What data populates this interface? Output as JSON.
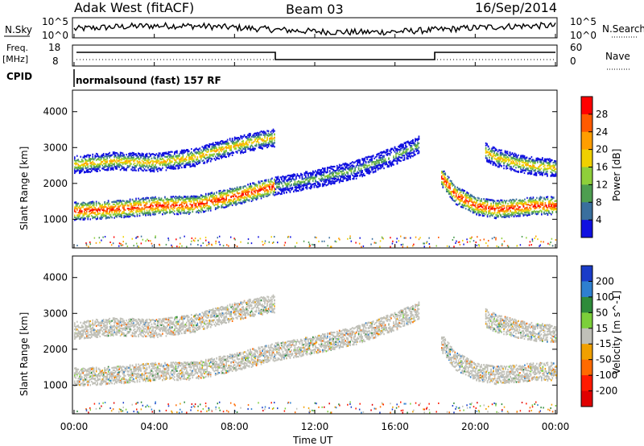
{
  "header": {
    "station": "Adak West (fitACF)",
    "beam": "Beam 03",
    "date": "16/Sep/2014"
  },
  "top_panels": {
    "nsky_label": "N.Sky",
    "nsky_ticks": [
      "10^5",
      "10^0"
    ],
    "nsearch_label": "N.Search",
    "nsearch_ticks": [
      "10^5",
      "10^0"
    ],
    "freq_label": "Freq.",
    "freq_unit": "[MHz]",
    "freq_ticks": [
      "18",
      "8"
    ],
    "nave_label": "Nave",
    "nave_ticks": [
      "60",
      "0"
    ],
    "cpid_label": "CPID",
    "cpid_text": "normalsound (fast) 157 RF"
  },
  "x_axis": {
    "label": "Time UT",
    "ticks": [
      "00:00",
      "04:00",
      "08:00",
      "12:00",
      "16:00",
      "20:00",
      "00:00"
    ]
  },
  "chart_data": [
    {
      "type": "heatmap",
      "quantity": "Power",
      "ylabel": "Slant Range [km]",
      "xlabel": "Time UT",
      "xlim": [
        0,
        24
      ],
      "ylim": [
        200,
        4600
      ],
      "y_ticks": [
        1000,
        2000,
        3000,
        4000
      ],
      "colorbar": {
        "label": "Power [dB]",
        "ticks": [
          "28",
          "24",
          "20",
          "16",
          "12",
          "8",
          "4"
        ],
        "colors": [
          "#ff0000",
          "#ff5a00",
          "#ff9e00",
          "#f0d000",
          "#8fcf3a",
          "#4e9e50",
          "#3a6f9e",
          "#1010e0"
        ]
      },
      "echo_bands": [
        {
          "band": "near",
          "x": [
            0,
            2,
            4,
            6,
            7.5,
            9,
            10,
            12,
            14,
            16,
            17.2
          ],
          "y": [
            1250,
            1300,
            1400,
            1420,
            1600,
            1800,
            1950,
            2150,
            2400,
            2800,
            3100
          ]
        },
        {
          "band": "far",
          "x": [
            0,
            2,
            4,
            6,
            7.5,
            9,
            10
          ],
          "y": [
            2550,
            2650,
            2600,
            2750,
            3000,
            3200,
            3300
          ]
        },
        {
          "band": "evening-near",
          "x": [
            18.3,
            19,
            20,
            21,
            22,
            23,
            24
          ],
          "y": [
            2200,
            1700,
            1400,
            1300,
            1350,
            1400,
            1400
          ]
        },
        {
          "band": "evening-far",
          "x": [
            20.5,
            21,
            22,
            23,
            24
          ],
          "y": [
            2900,
            2750,
            2600,
            2500,
            2450
          ]
        }
      ]
    },
    {
      "type": "heatmap",
      "quantity": "Velocity",
      "ylabel": "Slant Range [km]",
      "xlabel": "Time UT",
      "xlim": [
        0,
        24
      ],
      "ylim": [
        200,
        4600
      ],
      "y_ticks": [
        1000,
        2000,
        3000,
        4000
      ],
      "colorbar": {
        "label": "Velocity [m s^-1]",
        "ticks": [
          "200",
          "100",
          "50",
          "15",
          "-15",
          "-50",
          "-100",
          "-200"
        ],
        "colors": [
          "#1a3cc8",
          "#2e7fd0",
          "#2e8b3a",
          "#7ccf3a",
          "#c0c0b8",
          "#f0a000",
          "#ff6a00",
          "#ff1a00",
          "#e00000"
        ]
      }
    }
  ]
}
